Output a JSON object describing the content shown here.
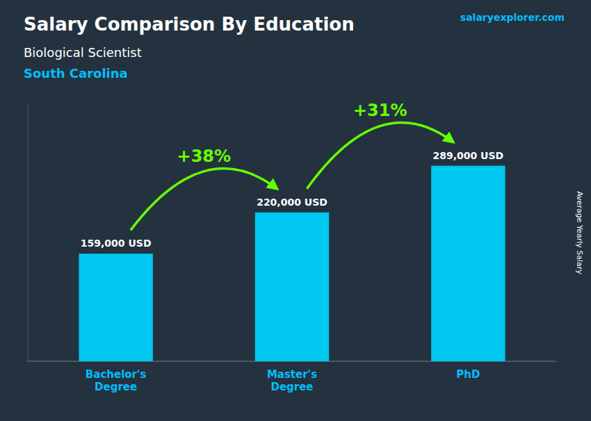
{
  "chart_data": {
    "type": "bar",
    "title": "Salary Comparison By Education",
    "subtitle": [
      "Biological Scientist",
      "South Carolina"
    ],
    "watermark": "salaryexplorer.com",
    "ylabel": "Average Yearly Salary",
    "categories": [
      "Bachelor's\nDegree",
      "Master's\nDegree",
      "PhD"
    ],
    "values": [
      159000,
      220000,
      289000
    ],
    "value_labels": [
      "159,000 USD",
      "220,000 USD",
      "289,000 USD"
    ],
    "data_labels": true,
    "color": "#00C8F0",
    "annotations": [
      {
        "text": "+38%",
        "color": "#66FF00"
      },
      {
        "text": "+31%",
        "color": "#66FF00"
      }
    ],
    "ylim": [
      0,
      380000
    ],
    "tick_labels": "x",
    "grid": false
  }
}
